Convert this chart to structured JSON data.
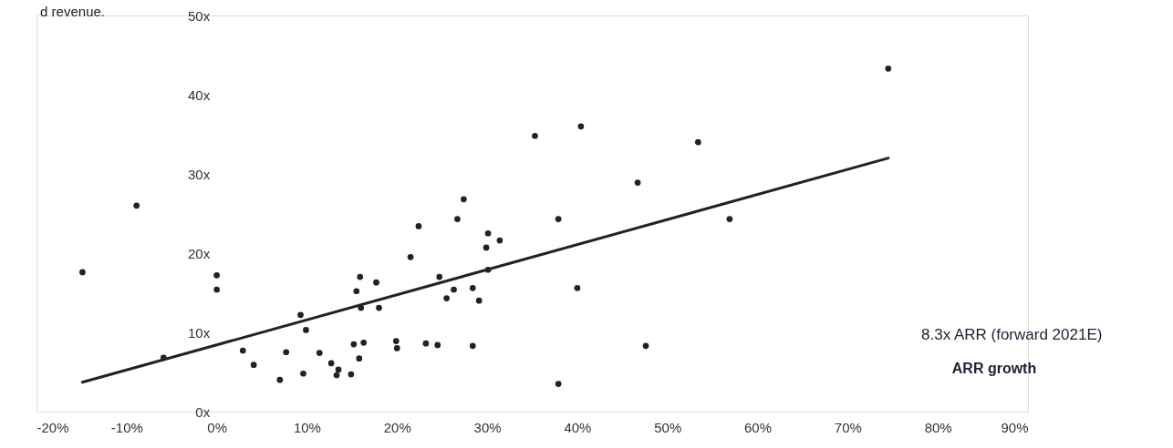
{
  "chart_data": {
    "type": "scatter",
    "xlabel": "ARR growth",
    "xlim": [
      -20,
      90
    ],
    "xticks": [
      {
        "value": -20,
        "label": "-20%"
      },
      {
        "value": -10,
        "label": "-10%"
      },
      {
        "value": 0,
        "label": "0%"
      },
      {
        "value": 10,
        "label": "10%"
      },
      {
        "value": 20,
        "label": "20%"
      },
      {
        "value": 30,
        "label": "30%"
      },
      {
        "value": 40,
        "label": "40%"
      },
      {
        "value": 50,
        "label": "50%"
      },
      {
        "value": 60,
        "label": "60%"
      },
      {
        "value": 70,
        "label": "70%"
      },
      {
        "value": 80,
        "label": "80%"
      },
      {
        "value": 90,
        "label": "90%"
      }
    ],
    "ylim": [
      0,
      50
    ],
    "yticks": [
      {
        "value": 0,
        "label": "0x"
      },
      {
        "value": 10,
        "label": "10x"
      },
      {
        "value": 20,
        "label": "20x"
      },
      {
        "value": 30,
        "label": "30x"
      },
      {
        "value": 40,
        "label": "40x"
      },
      {
        "value": 50,
        "label": "50x"
      }
    ],
    "grid": false,
    "annotations": [
      "d revenue.",
      "8.3x ARR (forward 2021E)"
    ],
    "series": [
      {
        "color": "#222222",
        "x": [
          -14.9,
          -8.9,
          -5.9,
          0,
          0,
          2.9,
          4.1,
          7.0,
          7.7,
          9.3,
          9.6,
          9.9,
          11.4,
          12.7,
          13.3,
          13.5,
          14.9,
          15.2,
          15.5,
          15.8,
          15.9,
          16.0,
          16.3,
          17.7,
          18.0,
          19.9,
          20.0,
          23.2,
          24.5,
          28.4,
          21.5,
          22.4,
          24.7,
          25.5,
          26.3,
          27.4,
          26.7,
          28.4,
          29.1,
          30.1,
          29.9,
          30.1,
          31.4,
          35.3,
          40.4,
          37.9,
          40.0,
          37.9,
          46.7,
          53.4,
          56.9,
          47.6,
          74.5
        ],
        "values": [
          17.6,
          26.0,
          6.8,
          17.2,
          15.4,
          7.7,
          5.9,
          4.0,
          7.5,
          12.2,
          4.8,
          10.3,
          7.4,
          6.1,
          4.6,
          5.3,
          4.7,
          8.5,
          15.2,
          6.7,
          17.0,
          13.1,
          8.7,
          16.3,
          13.1,
          8.9,
          8.0,
          8.6,
          8.4,
          8.3,
          19.5,
          23.4,
          17.0,
          14.3,
          15.4,
          26.8,
          24.3,
          15.6,
          14.0,
          17.9,
          20.7,
          22.5,
          21.6,
          34.8,
          36.0,
          24.3,
          15.6,
          3.5,
          28.9,
          34.0,
          24.3,
          8.3,
          43.3
        ]
      },
      {
        "type": "line",
        "color": "#222222",
        "line_style": "solid",
        "x": [
          -14.9,
          74.5
        ],
        "values": [
          3.7,
          32.0
        ]
      }
    ]
  }
}
